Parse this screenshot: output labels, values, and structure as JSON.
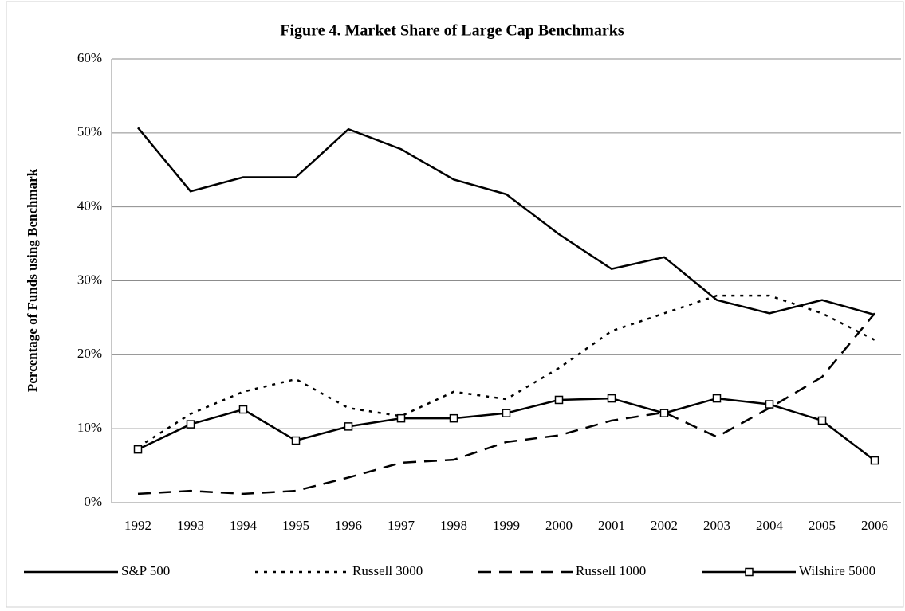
{
  "chart_data": {
    "type": "line",
    "title": "Figure 4. Market Share of Large Cap Benchmarks",
    "y_label": "Percentage of Funds using Benchmark",
    "categories": [
      "1992",
      "1993",
      "1994",
      "1995",
      "1996",
      "1997",
      "1998",
      "1999",
      "2000",
      "2001",
      "2002",
      "2003",
      "2004",
      "2005",
      "2006"
    ],
    "series": [
      {
        "name": "S&P 500",
        "color": "#000000",
        "style": "solid",
        "values": [
          50.7,
          42.1,
          44.0,
          44.0,
          50.5,
          47.8,
          43.7,
          41.7,
          36.3,
          31.6,
          33.2,
          27.4,
          25.6,
          27.4,
          25.4
        ]
      },
      {
        "name": "Russell 3000",
        "color": "#000000",
        "style": "dotted",
        "values": [
          7.5,
          12.0,
          15.0,
          16.7,
          12.8,
          11.7,
          15.0,
          14.0,
          18.2,
          23.2,
          25.6,
          28.0,
          28.0,
          25.6,
          22.0
        ]
      },
      {
        "name": "Russell 1000",
        "color": "#000000",
        "style": "dashed",
        "values": [
          1.2,
          1.6,
          1.2,
          1.6,
          3.4,
          5.4,
          5.8,
          8.2,
          9.1,
          11.1,
          12.2,
          8.9,
          12.8,
          17.0,
          25.6
        ]
      },
      {
        "name": "Wilshire 5000",
        "color": "#000000",
        "style": "solid",
        "marker": "square",
        "values": [
          7.2,
          10.6,
          12.6,
          8.4,
          10.3,
          11.4,
          11.4,
          12.1,
          13.9,
          14.1,
          12.1,
          14.1,
          13.3,
          11.1,
          5.7
        ]
      }
    ],
    "ylim": [
      0,
      60
    ],
    "yticks": [
      {
        "value": 0,
        "label": "0%"
      },
      {
        "value": 10,
        "label": "10%"
      },
      {
        "value": 20,
        "label": "20%"
      },
      {
        "value": 30,
        "label": "30%"
      },
      {
        "value": 40,
        "label": "40%"
      },
      {
        "value": 50,
        "label": "50%"
      },
      {
        "value": 60,
        "label": "60%"
      }
    ],
    "grid": true,
    "legend": "bottom"
  }
}
